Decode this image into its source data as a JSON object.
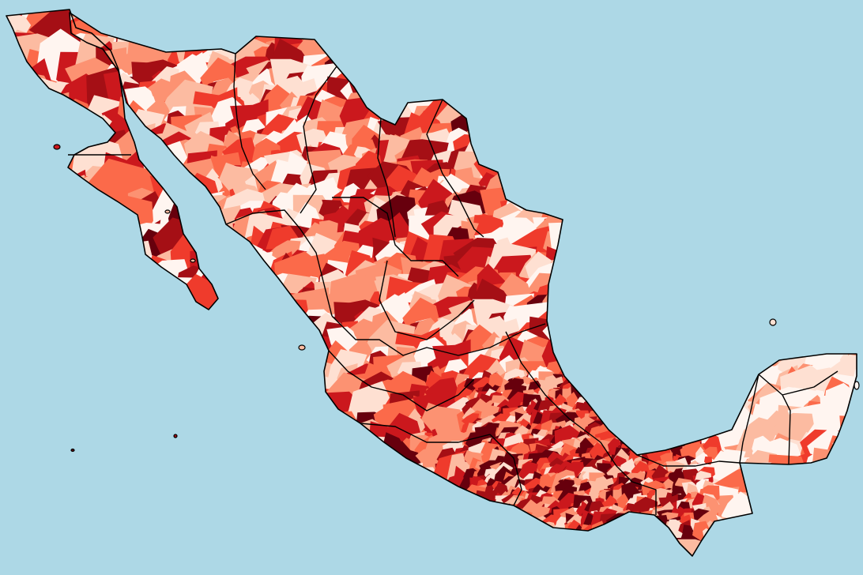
{
  "map": {
    "kind": "choropleth",
    "region": "Mexico",
    "unit": "municipality",
    "colors": {
      "ocean": "#add8e6",
      "border": "#000000",
      "scale": [
        "#fff5f0",
        "#fee0d2",
        "#fcbba1",
        "#fc9272",
        "#fb6a4a",
        "#ef3b2c",
        "#cb181d",
        "#a50f15",
        "#67000d"
      ]
    }
  }
}
